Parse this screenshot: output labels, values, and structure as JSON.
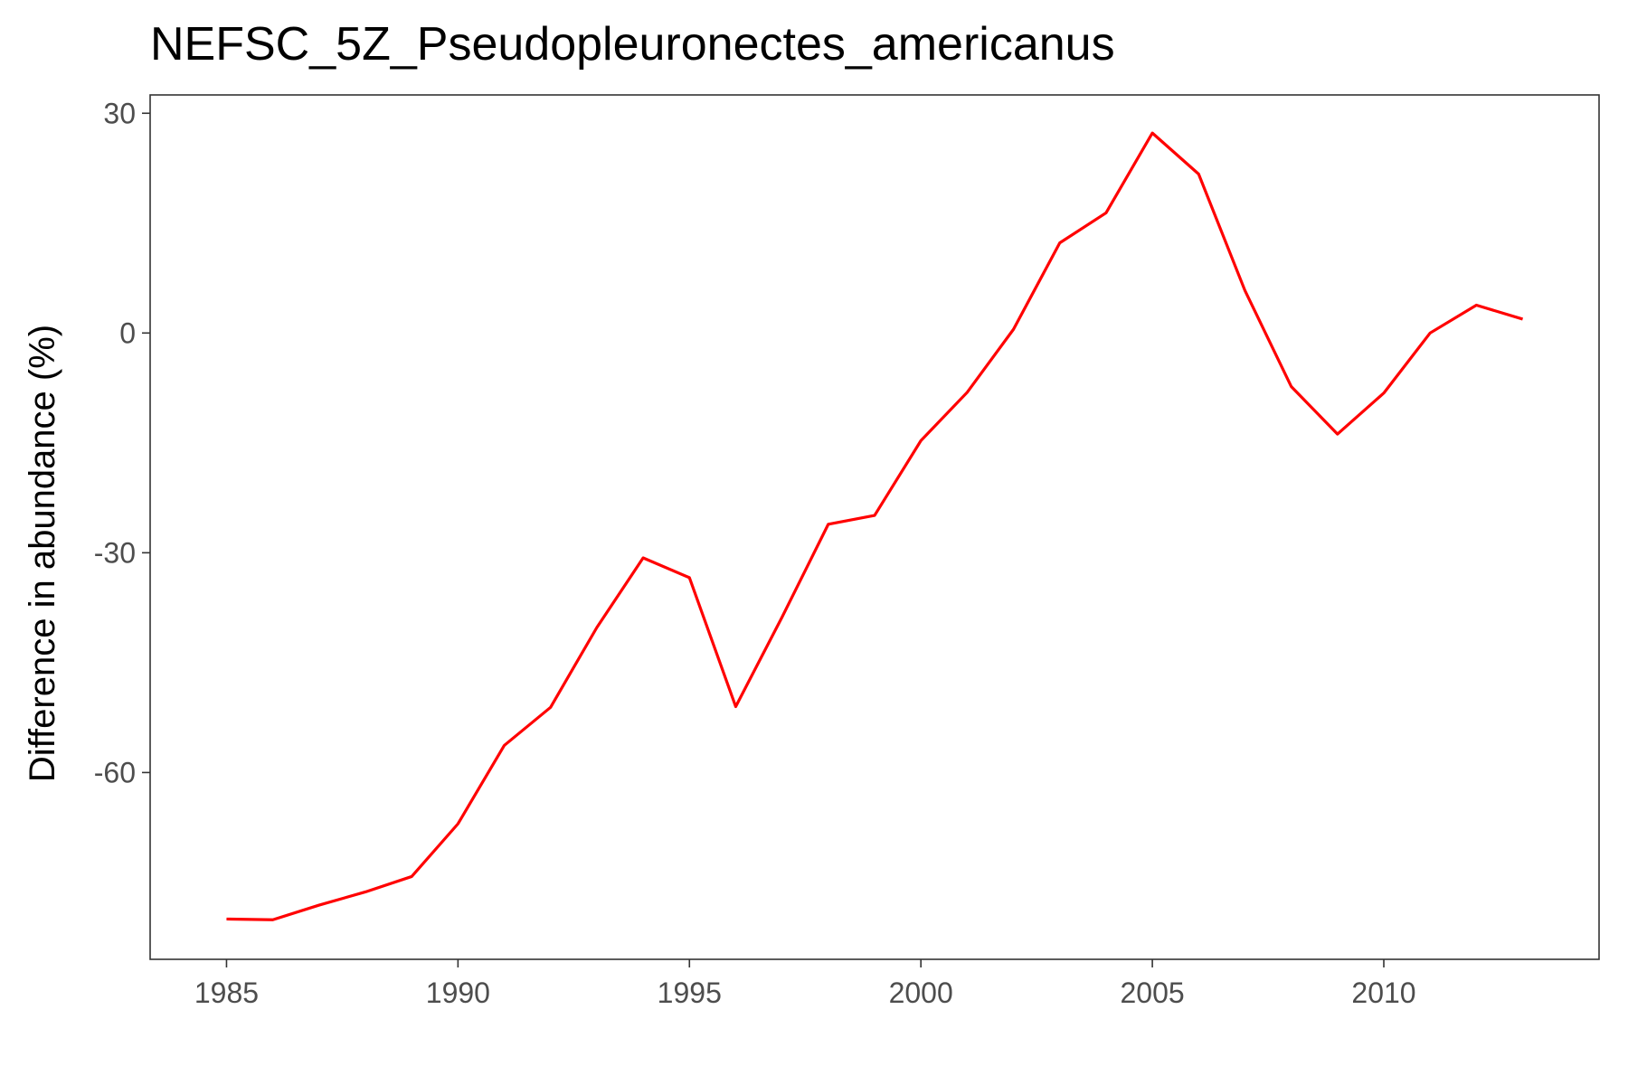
{
  "chart_data": {
    "type": "line",
    "title": "NEFSC_5Z_Pseudopleuronectes_americanus",
    "xlabel": "",
    "ylabel": "Difference in abundance (%)",
    "xlim": [
      1983.35,
      2014.65
    ],
    "ylim": [
      -85.5,
      32.5
    ],
    "x_ticks": [
      1985,
      1990,
      1995,
      2000,
      2005,
      2010
    ],
    "x_tick_labels": [
      "1985",
      "1990",
      "1995",
      "2000",
      "2005",
      "2010"
    ],
    "y_ticks": [
      30,
      0,
      -30,
      -60
    ],
    "y_tick_labels": [
      "30",
      "0",
      "-30",
      "-60"
    ],
    "grid": false,
    "legend": "none",
    "series": [
      {
        "color": "#ff0000",
        "x": [
          1985,
          1986,
          1987,
          1988,
          1989,
          1990,
          1991,
          1992,
          1993,
          1994,
          1995,
          1996,
          1997,
          1998,
          1999,
          2000,
          2001,
          2002,
          2003,
          2004,
          2005,
          2006,
          2007,
          2008,
          2009,
          2010,
          2011,
          2012,
          2013
        ],
        "y": [
          -80.0,
          -80.1,
          -78.1,
          -76.3,
          -74.2,
          -67.0,
          -56.3,
          -51.1,
          -40.2,
          -30.7,
          -33.4,
          -51.0,
          -38.8,
          -26.1,
          -24.9,
          -14.7,
          -8.1,
          0.5,
          12.3,
          16.4,
          27.3,
          21.7,
          5.8,
          -7.3,
          -13.8,
          -8.2,
          0.0,
          3.8,
          1.9
        ]
      }
    ]
  }
}
